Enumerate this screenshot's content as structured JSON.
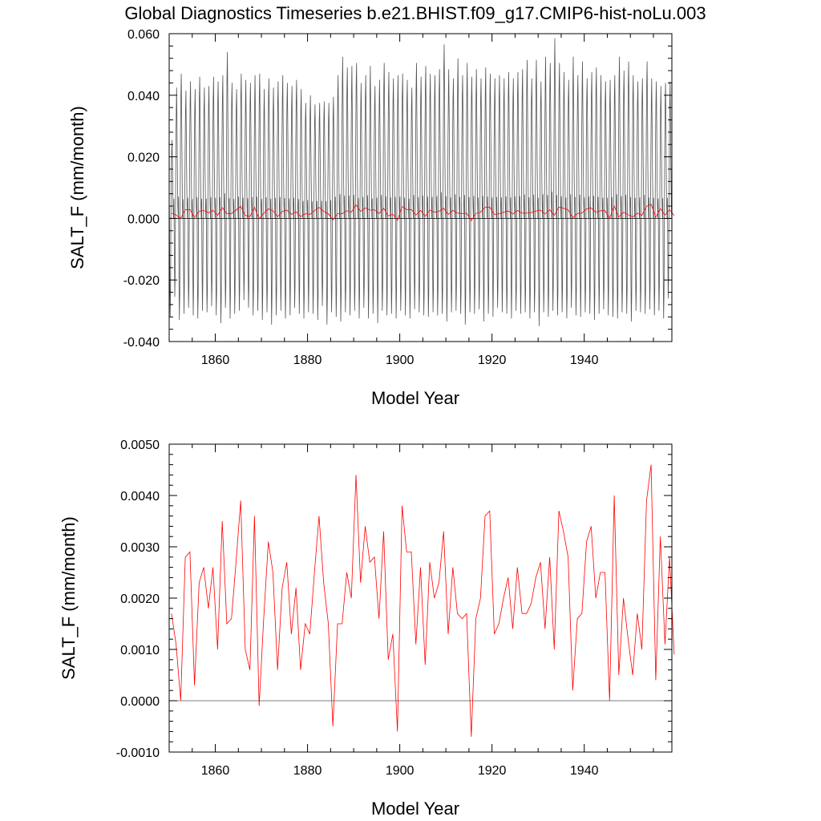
{
  "title": "Global Diagnostics Timeseries b.e21.BHIST.f09_g17.CMIP6-hist-noLu.003",
  "colors": {
    "monthly": "#555555",
    "annual": "#ff0000",
    "zero": "#000000"
  },
  "chart_data": [
    {
      "type": "line",
      "panel": "top",
      "xlabel": "Model Year",
      "ylabel": "SALT_F (mm/month)",
      "xlim": [
        1850,
        1959
      ],
      "ylim": [
        -0.04,
        0.06
      ],
      "xticks": [
        1860,
        1880,
        1900,
        1920,
        1940
      ],
      "xtick_labels": [
        "1860",
        "1880",
        "1900",
        "1920",
        "1940"
      ],
      "yticks": [
        -0.04,
        -0.02,
        0.0,
        0.02,
        0.04,
        0.06
      ],
      "ytick_labels": [
        "-0.040",
        "-0.020",
        "0.000",
        "0.020",
        "0.040",
        "0.060"
      ],
      "reference_line": 0.0,
      "series": [
        {
          "color": "#555555",
          "description_values": "monthly values, 1850-1958, oscillating roughly between -0.035 and 0.058",
          "annual_max": [
            0.0255,
            0.0425,
            0.047,
            0.0415,
            0.0445,
            0.042,
            0.046,
            0.0425,
            0.043,
            0.046,
            0.0445,
            0.0465,
            0.054,
            0.044,
            0.042,
            0.047,
            0.045,
            0.044,
            0.0465,
            0.047,
            0.042,
            0.0455,
            0.0425,
            0.0445,
            0.0465,
            0.044,
            0.043,
            0.045,
            0.042,
            0.0375,
            0.04,
            0.037,
            0.0375,
            0.038,
            0.0375,
            0.0395,
            0.0465,
            0.0525,
            0.049,
            0.0495,
            0.0505,
            0.044,
            0.0465,
            0.0495,
            0.043,
            0.045,
            0.0505,
            0.0475,
            0.0455,
            0.0465,
            0.047,
            0.045,
            0.0425,
            0.0505,
            0.046,
            0.0495,
            0.047,
            0.0465,
            0.0485,
            0.0565,
            0.0485,
            0.0455,
            0.052,
            0.0465,
            0.0505,
            0.046,
            0.0485,
            0.0455,
            0.049,
            0.047,
            0.0455,
            0.0465,
            0.0455,
            0.0475,
            0.0455,
            0.0475,
            0.0485,
            0.0515,
            0.0455,
            0.0515,
            0.0445,
            0.0525,
            0.0505,
            0.0585,
            0.0505,
            0.0475,
            0.045,
            0.0525,
            0.0465,
            0.051,
            0.0455,
            0.0475,
            0.049,
            0.0465,
            0.0445,
            0.045,
            0.0465,
            0.0525,
            0.048,
            0.051,
            0.0465,
            0.0445,
            0.0455,
            0.051,
            0.0455,
            0.0445,
            0.043,
            0.044,
            0.0445
          ],
          "annual_min": [
            -0.032,
            -0.0255,
            -0.033,
            -0.031,
            -0.029,
            -0.0315,
            -0.0325,
            -0.03,
            -0.0305,
            -0.0285,
            -0.0315,
            -0.034,
            -0.029,
            -0.0325,
            -0.031,
            -0.03,
            -0.0265,
            -0.029,
            -0.0315,
            -0.03,
            -0.033,
            -0.0305,
            -0.0345,
            -0.0315,
            -0.03,
            -0.0325,
            -0.0315,
            -0.029,
            -0.031,
            -0.0325,
            -0.0305,
            -0.031,
            -0.033,
            -0.0285,
            -0.0345,
            -0.0305,
            -0.032,
            -0.0335,
            -0.0305,
            -0.0315,
            -0.03,
            -0.0325,
            -0.029,
            -0.0325,
            -0.031,
            -0.034,
            -0.03,
            -0.0315,
            -0.031,
            -0.0325,
            -0.03,
            -0.0315,
            -0.0325,
            -0.0295,
            -0.0305,
            -0.0315,
            -0.032,
            -0.0305,
            -0.0315,
            -0.031,
            -0.0335,
            -0.0305,
            -0.03,
            -0.031,
            -0.0345,
            -0.0305,
            -0.031,
            -0.0295,
            -0.0335,
            -0.031,
            -0.032,
            -0.029,
            -0.0305,
            -0.031,
            -0.0325,
            -0.03,
            -0.031,
            -0.0305,
            -0.0325,
            -0.0305,
            -0.035,
            -0.0305,
            -0.032,
            -0.03,
            -0.0315,
            -0.0305,
            -0.0325,
            -0.029,
            -0.0315,
            -0.032,
            -0.0305,
            -0.031,
            -0.033,
            -0.031,
            -0.0295,
            -0.0315,
            -0.032,
            -0.0325,
            -0.0305,
            -0.031,
            -0.0335,
            -0.03,
            -0.0305,
            -0.031,
            -0.0295,
            -0.0315,
            -0.03,
            -0.0325,
            -0.026
          ]
        },
        {
          "color": "#ff0000",
          "description_values": "annual means, same values as bottom panel"
        }
      ]
    },
    {
      "type": "line",
      "panel": "bottom",
      "xlabel": "Model Year",
      "ylabel": "SALT_F (mm/month)",
      "xlim": [
        1850,
        1959
      ],
      "ylim": [
        -0.001,
        0.005
      ],
      "xticks": [
        1860,
        1880,
        1900,
        1920,
        1940
      ],
      "xtick_labels": [
        "1860",
        "1880",
        "1900",
        "1920",
        "1940"
      ],
      "yticks": [
        -0.001,
        0.0,
        0.001,
        0.002,
        0.003,
        0.004,
        0.005
      ],
      "ytick_labels": [
        "-0.0010",
        "0.0000",
        "0.0010",
        "0.0020",
        "0.0030",
        "0.0040",
        "0.0050"
      ],
      "reference_line": 0.0,
      "x_start": 1850.5,
      "series": [
        {
          "color": "#ff0000",
          "values": [
            0.0017,
            0.0011,
            0.0,
            0.0028,
            0.0029,
            0.0003,
            0.0023,
            0.0026,
            0.0018,
            0.0026,
            0.001,
            0.0035,
            0.0015,
            0.0016,
            0.0027,
            0.0039,
            0.001,
            0.0006,
            0.0036,
            -0.0001,
            0.0016,
            0.0031,
            0.0025,
            0.0006,
            0.0022,
            0.0027,
            0.0013,
            0.0022,
            0.0006,
            0.0015,
            0.0013,
            0.0025,
            0.0036,
            0.0023,
            0.0015,
            -0.0005,
            0.0015,
            0.0015,
            0.0025,
            0.002,
            0.0044,
            0.0023,
            0.0034,
            0.0027,
            0.0028,
            0.0016,
            0.0033,
            0.0008,
            0.0013,
            -0.0006,
            0.0038,
            0.0029,
            0.0029,
            0.0011,
            0.0026,
            0.0007,
            0.0027,
            0.002,
            0.0023,
            0.0033,
            0.0013,
            0.0026,
            0.0017,
            0.0016,
            0.0017,
            -0.0007,
            0.0016,
            0.002,
            0.0036,
            0.0037,
            0.0013,
            0.0015,
            0.002,
            0.0024,
            0.0014,
            0.0026,
            0.0017,
            0.0017,
            0.0019,
            0.0024,
            0.0027,
            0.0014,
            0.0028,
            0.001,
            0.0037,
            0.0033,
            0.0028,
            0.0002,
            0.0016,
            0.0017,
            0.0031,
            0.0034,
            0.002,
            0.0025,
            0.0025,
            0.0,
            0.004,
            0.0005,
            0.002,
            0.0012,
            0.0005,
            0.0017,
            0.001,
            0.0039,
            0.0046,
            0.0004,
            0.0032,
            0.0011,
            0.0028,
            0.0009
          ]
        }
      ]
    }
  ]
}
